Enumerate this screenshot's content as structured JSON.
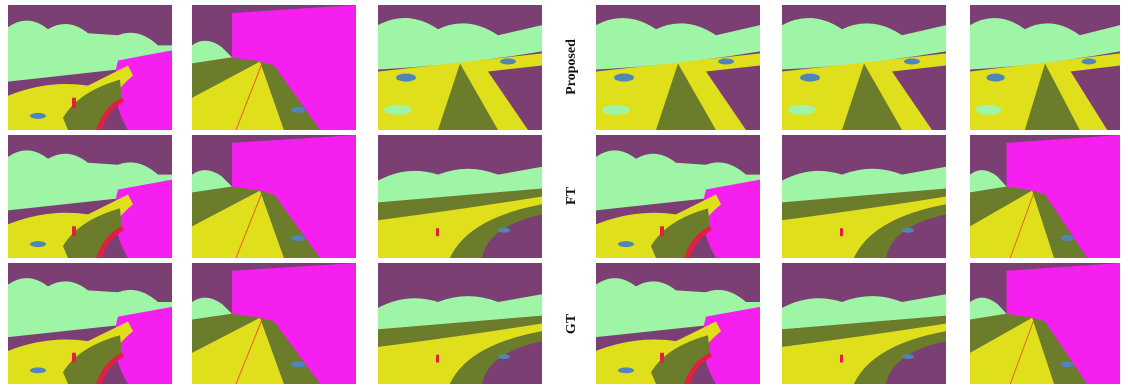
{
  "figure": {
    "row_labels": [
      "Proposed",
      "FT",
      "GT"
    ]
  }
}
